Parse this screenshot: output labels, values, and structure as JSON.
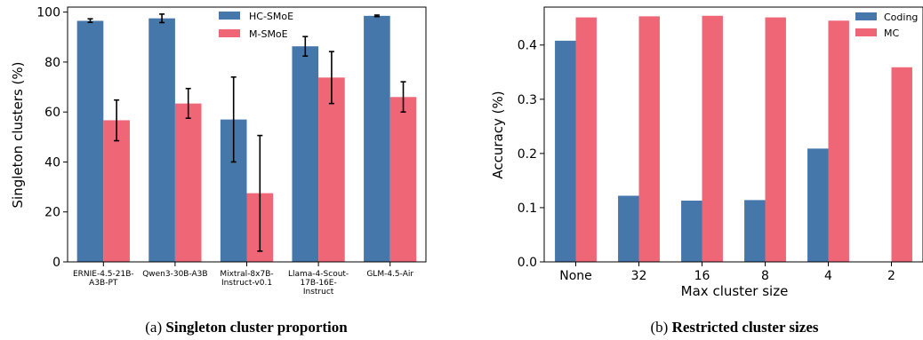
{
  "colors": {
    "blue": "#4577ab",
    "red": "#ef6677"
  },
  "chart_data": [
    {
      "type": "bar",
      "xlabel": "",
      "ylabel": "Singleton clusters (%)",
      "ylim": [
        0,
        102
      ],
      "yticks": [
        "0",
        "20",
        "40",
        "60",
        "80",
        "100"
      ],
      "ytick_values": [
        0,
        20,
        40,
        60,
        80,
        100
      ],
      "categories": [
        [
          "ERNIE-4.5-21B-",
          "A3B-PT"
        ],
        [
          "Qwen3-30B-A3B"
        ],
        [
          "Mixtral-8x7B-",
          "Instruct-v0.1"
        ],
        [
          "Llama-4-Scout-",
          "17B-16E-",
          "Instruct"
        ],
        [
          "GLM-4.5-Air"
        ]
      ],
      "series": [
        {
          "name": "HC-SMoE",
          "color": "#4577ab",
          "values": [
            96.5,
            97.5,
            57,
            86.3,
            98.5
          ],
          "err_low": [
            95.9,
            95.8,
            40,
            82.4,
            98.2
          ],
          "err_high": [
            97.3,
            99.2,
            74,
            90.2,
            98.8
          ]
        },
        {
          "name": "M-SMoE",
          "color": "#ef6677",
          "values": [
            56.7,
            63.4,
            27.5,
            73.8,
            66
          ],
          "err_low": [
            48.5,
            57.5,
            4.3,
            63.4,
            60
          ],
          "err_high": [
            64.8,
            69.4,
            50.6,
            84.2,
            72.1
          ]
        }
      ],
      "legend_position": "top-center",
      "grid": false,
      "caption_prefix": "(a) ",
      "caption_title": "Singleton cluster proportion"
    },
    {
      "type": "bar",
      "xlabel": "Max cluster size",
      "ylabel": "Accuracy (%)",
      "ylim": [
        0,
        0.47
      ],
      "yticks": [
        "0.0",
        "0.1",
        "0.2",
        "0.3",
        "0.4"
      ],
      "ytick_values": [
        0,
        0.1,
        0.2,
        0.3,
        0.4
      ],
      "categories": [
        "None",
        "32",
        "16",
        "8",
        "4",
        "2"
      ],
      "series": [
        {
          "name": "Coding",
          "color": "#4577ab",
          "values": [
            0.408,
            0.122,
            0.113,
            0.114,
            0.209,
            null
          ]
        },
        {
          "name": "MC",
          "color": "#ef6677",
          "values": [
            0.451,
            0.453,
            0.454,
            0.451,
            0.445,
            0.359
          ]
        }
      ],
      "legend_position": "top-right",
      "grid": false,
      "caption_prefix": "(b) ",
      "caption_title": "Restricted cluster sizes"
    }
  ]
}
